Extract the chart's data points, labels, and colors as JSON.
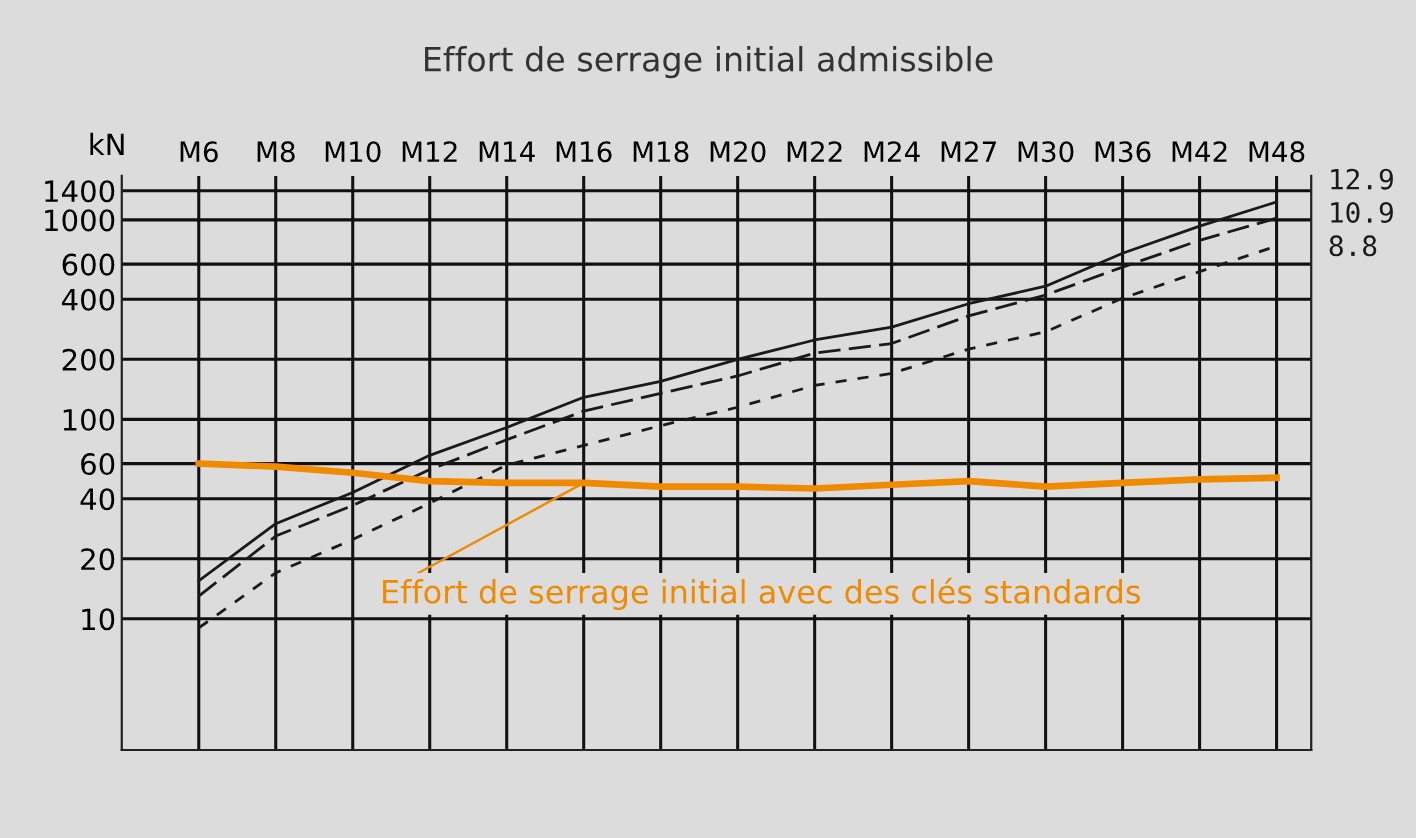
{
  "chart_data": {
    "type": "line",
    "title": "Effort de serrage initial admissible",
    "ylabel": "kN",
    "categories": [
      "M6",
      "M8",
      "M10",
      "M12",
      "M14",
      "M16",
      "M18",
      "M20",
      "M22",
      "M24",
      "M27",
      "M30",
      "M36",
      "M42",
      "M48"
    ],
    "series": [
      {
        "name": "12.9",
        "color": "#1a1a1a",
        "line_style": "solid",
        "values": [
          15.5,
          30,
          43,
          66,
          91,
          129,
          155,
          200,
          250,
          290,
          380,
          465,
          680,
          930,
          1230
        ]
      },
      {
        "name": "10.9",
        "color": "#1a1a1a",
        "line_style": "dashed",
        "values": [
          13,
          26,
          37,
          56,
          79,
          110,
          135,
          165,
          215,
          240,
          330,
          420,
          580,
          790,
          1020
        ]
      },
      {
        "name": "8.8",
        "color": "#1a1a1a",
        "line_style": "dotted",
        "values": [
          9,
          17,
          25,
          38,
          59,
          74,
          93,
          115,
          148,
          170,
          225,
          275,
          405,
          550,
          740
        ]
      },
      {
        "color": "#f08a00",
        "line_style": "solid",
        "values": [
          60,
          58,
          54,
          49,
          48,
          48,
          46,
          46,
          45,
          47,
          49,
          46,
          48,
          50,
          51
        ]
      }
    ],
    "log": "y",
    "ylim": [
      2.2,
      1660
    ],
    "yticks": [
      10,
      20,
      40,
      60,
      100,
      200,
      400,
      600,
      1000,
      1400
    ],
    "grid": true,
    "marker": "none",
    "annotations": [
      {
        "text": "Effort de serrage initial avec des clés standards",
        "x": "M16",
        "y": 48
      }
    ]
  }
}
